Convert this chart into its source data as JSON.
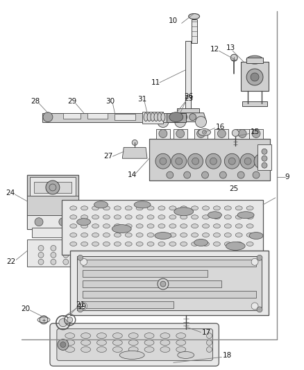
{
  "bg_color": "#ffffff",
  "line_color": "#444444",
  "fill_light": "#e8e8e8",
  "fill_mid": "#d0d0d0",
  "fill_dark": "#aaaaaa",
  "figsize": [
    4.39,
    5.33
  ],
  "dpi": 100,
  "label_fs": 7.5,
  "lw": 0.7
}
